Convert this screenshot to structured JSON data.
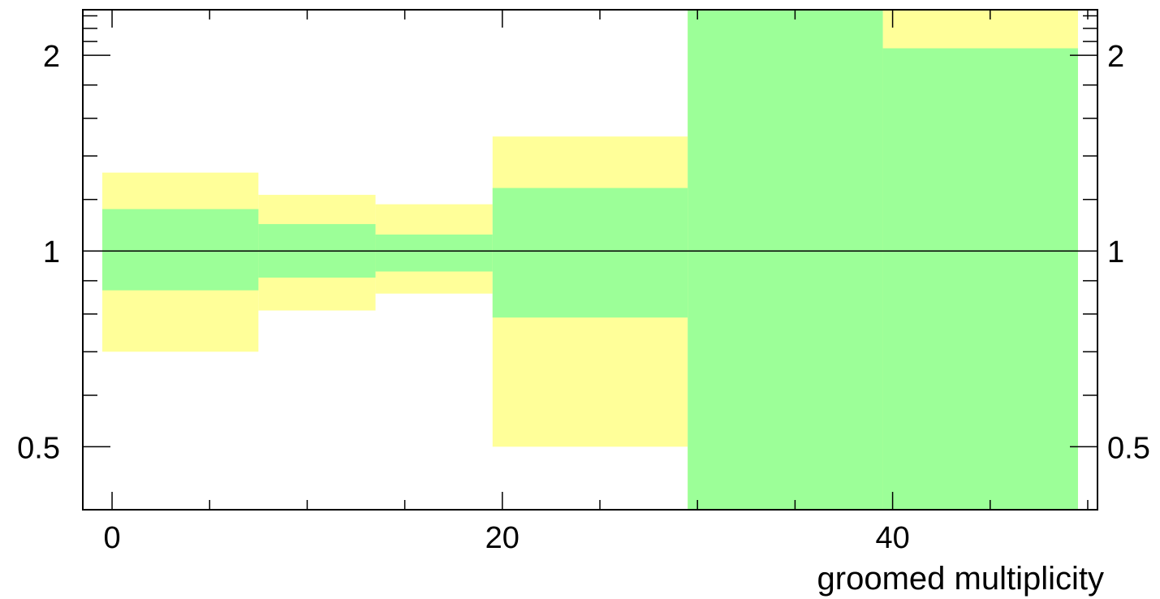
{
  "chart_data": {
    "type": "area",
    "title": "",
    "xlabel": "groomed multiplicity",
    "ylabel": "",
    "y_scale": "log",
    "xlim": [
      -1.5,
      50.5
    ],
    "ylim": [
      0.4,
      2.35
    ],
    "x_ticks": [
      {
        "value": 0,
        "label": "0"
      },
      {
        "value": 20,
        "label": "20"
      },
      {
        "value": 40,
        "label": "40"
      }
    ],
    "y_ticks": [
      {
        "value": 0.5,
        "label": "0.5"
      },
      {
        "value": 1,
        "label": "1"
      },
      {
        "value": 2,
        "label": "2"
      }
    ],
    "reference_line": 1,
    "bins": [
      {
        "x_low": -0.5,
        "x_high": 7.5,
        "inner": [
          0.87,
          1.16
        ],
        "outer": [
          0.7,
          1.32
        ]
      },
      {
        "x_low": 7.5,
        "x_high": 13.5,
        "inner": [
          0.91,
          1.1
        ],
        "outer": [
          0.81,
          1.22
        ]
      },
      {
        "x_low": 13.5,
        "x_high": 19.5,
        "inner": [
          0.93,
          1.06
        ],
        "outer": [
          0.86,
          1.18
        ]
      },
      {
        "x_low": 19.5,
        "x_high": 29.5,
        "inner": [
          0.79,
          1.25
        ],
        "outer": [
          0.5,
          1.5
        ]
      },
      {
        "x_low": 29.5,
        "x_high": 39.5,
        "inner": [
          0.4,
          2.35
        ],
        "outer": [
          0.4,
          2.35
        ]
      },
      {
        "x_low": 39.5,
        "x_high": 49.5,
        "inner": [
          0.4,
          2.05
        ],
        "outer": [
          0.4,
          2.35
        ]
      }
    ],
    "colors": {
      "inner": "#9cff98",
      "outer": "#ffff99",
      "axis": "#000000"
    }
  }
}
